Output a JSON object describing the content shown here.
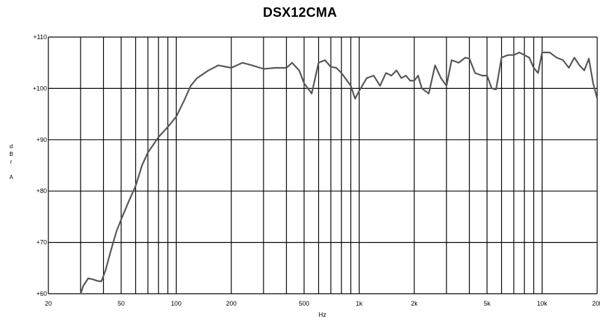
{
  "chart_data": {
    "type": "line",
    "title": "DSX12CMA",
    "xlabel": "Hz",
    "ylabel": "dBrA",
    "x_scale": "log",
    "xlim": [
      20,
      20000
    ],
    "ylim": [
      60,
      110
    ],
    "x_ticks": [
      {
        "value": 20,
        "label": "20"
      },
      {
        "value": 50,
        "label": "50"
      },
      {
        "value": 100,
        "label": "100"
      },
      {
        "value": 200,
        "label": "200"
      },
      {
        "value": 500,
        "label": "500"
      },
      {
        "value": 1000,
        "label": "1k"
      },
      {
        "value": 2000,
        "label": "2k"
      },
      {
        "value": 5000,
        "label": "5k"
      },
      {
        "value": 10000,
        "label": "10k"
      },
      {
        "value": 20000,
        "label": "20k"
      }
    ],
    "y_ticks": [
      {
        "value": 60,
        "label": "+60"
      },
      {
        "value": 70,
        "label": "+70"
      },
      {
        "value": 80,
        "label": "+80"
      },
      {
        "value": 90,
        "label": "+90"
      },
      {
        "value": 100,
        "label": "+100"
      },
      {
        "value": 110,
        "label": "+110"
      }
    ],
    "grid": true,
    "series": [
      {
        "color": "#555555",
        "x": [
          30,
          31,
          33,
          35,
          37,
          39,
          41,
          44,
          47,
          50,
          55,
          60,
          65,
          70,
          80,
          90,
          100,
          110,
          120,
          130,
          150,
          170,
          200,
          230,
          260,
          300,
          350,
          400,
          430,
          470,
          500,
          550,
          600,
          650,
          700,
          750,
          800,
          900,
          950,
          1000,
          1100,
          1200,
          1300,
          1400,
          1500,
          1600,
          1700,
          1800,
          1900,
          2000,
          2100,
          2200,
          2400,
          2600,
          2800,
          3000,
          3200,
          3500,
          3800,
          4000,
          4300,
          4700,
          5000,
          5300,
          5600,
          6000,
          6500,
          7000,
          7500,
          8000,
          8500,
          9000,
          9500,
          10000,
          11000,
          12000,
          13000,
          14000,
          15000,
          16000,
          17000,
          18000,
          19000,
          20000
        ],
        "y": [
          60.0,
          61.5,
          63.0,
          62.8,
          62.5,
          62.4,
          64.5,
          68.5,
          72.0,
          74.5,
          78.0,
          81.0,
          85.0,
          87.5,
          90.5,
          92.5,
          94.5,
          97.5,
          100.5,
          102.0,
          103.5,
          104.5,
          104.0,
          105.0,
          104.5,
          103.8,
          104.0,
          104.0,
          105.0,
          103.5,
          101.0,
          99.0,
          105.0,
          105.5,
          104.2,
          104.0,
          103.0,
          100.5,
          98.0,
          99.5,
          102.0,
          102.5,
          100.5,
          103.0,
          102.5,
          103.5,
          102.0,
          102.5,
          101.5,
          101.5,
          102.5,
          100.0,
          99.0,
          104.5,
          102.0,
          100.5,
          105.5,
          105.0,
          106.0,
          105.8,
          103.0,
          102.5,
          102.5,
          100.0,
          99.8,
          106.0,
          106.5,
          106.5,
          107.0,
          106.5,
          106.0,
          104.0,
          103.0,
          107.0,
          107.0,
          106.0,
          105.5,
          104.0,
          106.0,
          104.5,
          103.5,
          105.8,
          101.0,
          98.0
        ]
      }
    ]
  }
}
